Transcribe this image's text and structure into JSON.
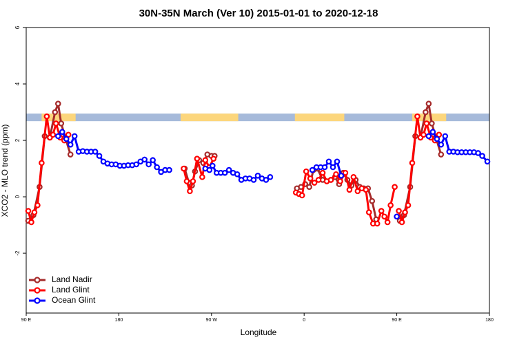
{
  "chart_data": {
    "type": "line",
    "title": "30N-35N March (Ver 10)   2015-01-01 to 2020-12-18",
    "xlabel": "Longitude",
    "ylabel": "XCO2 - MLO trend (ppm)",
    "xlim": [
      90,
      540
    ],
    "ylim": [
      -4.12,
      6
    ],
    "xticks": [
      {
        "value": 90,
        "label": "90 E"
      },
      180,
      {
        "value": 270,
        "label": "90 W"
      },
      {
        "value": 360,
        "label": "0"
      },
      {
        "value": 450,
        "label": "90 E"
      },
      {
        "value": 540,
        "label": "180"
      }
    ],
    "yticks": [
      -2,
      0,
      2,
      4,
      6
    ],
    "legend": "bottom-left",
    "strip": {
      "y": [
        2.68,
        2.95
      ],
      "land": [
        [
          105,
          138
        ],
        [
          240,
          296
        ],
        [
          351,
          399
        ],
        [
          465,
          498
        ]
      ],
      "land_color": "#fcd67c",
      "ocean_color": "#a6bada"
    },
    "series": [
      {
        "name": "Land Nadir",
        "color": "#a52a2a",
        "x": [
          92,
          97,
          103,
          108,
          113,
          118,
          121,
          124,
          128,
          133,
          null,
          244,
          248,
          251,
          254,
          258,
          262,
          266,
          270,
          273,
          null,
          353,
          357,
          361,
          365,
          369,
          373,
          378,
          382,
          386,
          390,
          394,
          398,
          402,
          406,
          410,
          414,
          418,
          422,
          426,
          430,
          null,
          453,
          457,
          463,
          468,
          473,
          478,
          481,
          484,
          488,
          493
        ],
        "values": [
          -0.85,
          -0.65,
          0.35,
          2.15,
          2.1,
          3.0,
          3.3,
          2.6,
          2.1,
          1.5,
          null,
          1.0,
          0.5,
          0.4,
          0.9,
          1.3,
          1.2,
          1.5,
          1.45,
          1.45,
          null,
          0.3,
          0.35,
          0.45,
          0.35,
          0.95,
          1.0,
          0.6,
          0.55,
          0.6,
          0.7,
          0.45,
          0.85,
          0.6,
          0.4,
          0.6,
          0.35,
          0.3,
          0.3,
          -0.15,
          -0.8,
          null,
          -0.85,
          -0.65,
          0.35,
          2.15,
          2.1,
          3.0,
          3.3,
          2.6,
          2.1,
          1.5
        ]
      },
      {
        "name": "Land Glint",
        "color": "#ff0000",
        "x": [
          92,
          95,
          98,
          101,
          105,
          110,
          113,
          116,
          119,
          123,
          127,
          131,
          null,
          243,
          246,
          249,
          252,
          256,
          261,
          264,
          268,
          272,
          null,
          352,
          355,
          358,
          362,
          366,
          370,
          374,
          378,
          382,
          386,
          391,
          395,
          400,
          404,
          408,
          412,
          416,
          420,
          423,
          427,
          431,
          435,
          438,
          441,
          444,
          448,
          null,
          452,
          455,
          458,
          461,
          465,
          470,
          473,
          476,
          479,
          483,
          487,
          491
        ],
        "values": [
          -0.5,
          -0.9,
          -0.55,
          -0.3,
          1.2,
          2.85,
          2.1,
          2.2,
          2.6,
          2.1,
          2.0,
          2.2,
          null,
          1.0,
          0.55,
          0.2,
          0.55,
          1.35,
          0.7,
          1.3,
          1.05,
          1.35,
          null,
          0.15,
          0.1,
          0.05,
          0.9,
          0.65,
          0.5,
          0.6,
          0.85,
          0.55,
          0.6,
          0.8,
          0.55,
          0.85,
          0.25,
          0.7,
          0.2,
          0.3,
          0.25,
          -0.55,
          -0.95,
          -0.95,
          -0.5,
          -0.7,
          -0.9,
          -0.3,
          0.35,
          null,
          -0.5,
          -0.9,
          -0.55,
          -0.3,
          1.2,
          2.85,
          2.1,
          2.2,
          2.6,
          2.1,
          2.0,
          2.2
        ]
      },
      {
        "name": "Ocean Glint",
        "color": "#0000ff",
        "x": [
          121,
          125,
          129,
          133,
          137,
          141,
          145,
          149,
          153,
          157,
          161,
          165,
          169,
          173,
          177,
          181,
          185,
          189,
          193,
          197,
          201,
          205,
          209,
          213,
          217,
          221,
          225,
          229,
          null,
          264,
          268,
          271,
          275,
          279,
          283,
          287,
          291,
          295,
          299,
          303,
          307,
          311,
          315,
          319,
          323,
          327,
          null,
          368,
          372,
          376,
          380,
          384,
          388,
          392,
          396,
          null,
          450,
          null,
          481,
          485,
          489,
          493,
          497,
          501,
          505,
          509,
          513,
          517,
          521,
          525,
          529,
          533,
          538
        ],
        "values": [
          2.15,
          2.3,
          2.05,
          1.85,
          2.15,
          1.6,
          1.62,
          1.6,
          1.6,
          1.6,
          1.45,
          1.25,
          1.18,
          1.15,
          1.15,
          1.1,
          1.1,
          1.12,
          1.12,
          1.15,
          1.25,
          1.32,
          1.15,
          1.3,
          1.05,
          0.88,
          0.95,
          0.95,
          null,
          1.0,
          0.95,
          1.1,
          0.85,
          0.85,
          0.85,
          0.95,
          0.85,
          0.8,
          0.6,
          0.65,
          0.65,
          0.6,
          0.75,
          0.65,
          0.6,
          0.7,
          null,
          0.95,
          1.05,
          1.05,
          1.05,
          1.25,
          1.05,
          1.25,
          0.75,
          null,
          -0.7,
          null,
          2.15,
          2.3,
          2.05,
          1.85,
          2.15,
          1.6,
          1.6,
          1.58,
          1.58,
          1.58,
          1.58,
          1.58,
          1.55,
          1.45,
          1.25
        ]
      }
    ]
  }
}
